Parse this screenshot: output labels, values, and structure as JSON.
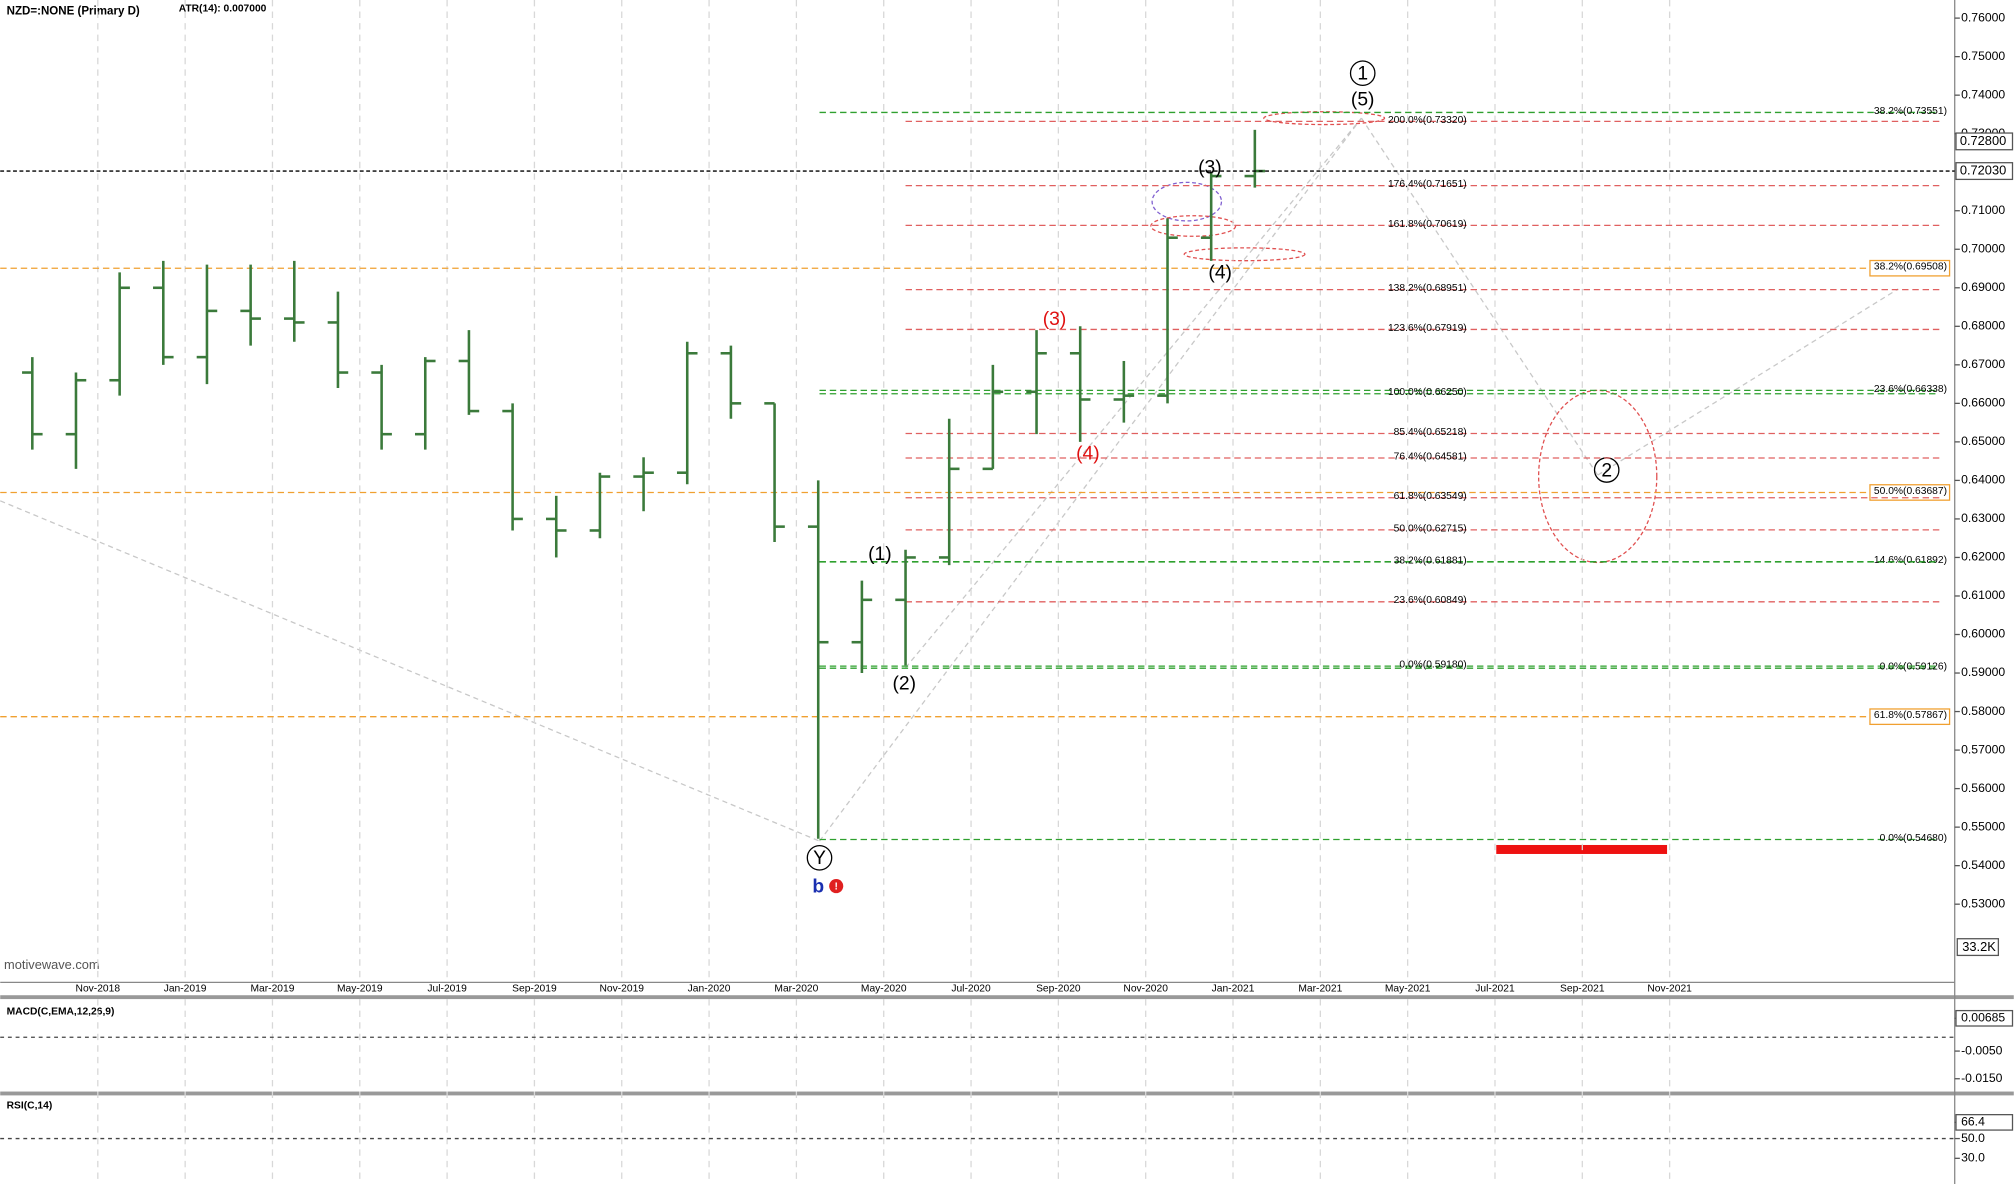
{
  "chart_data": {
    "type": "ohlc",
    "title": "NZD=:NONE (Primary D)",
    "subtitle": "ATR(14): 0.007000",
    "watermark": "motivewave.com",
    "volume_label": "33.2K",
    "color": "#3b7a3b",
    "categories": [
      null,
      null,
      "Nov-2018",
      null,
      "Jan-2019",
      null,
      "Mar-2019",
      null,
      "May-2019",
      null,
      "Jul-2019",
      null,
      "Sep-2019",
      null,
      "Nov-2019",
      null,
      "Jan-2020",
      null,
      "Mar-2020",
      null,
      "May-2020",
      null,
      "Jul-2020",
      null,
      "Sep-2020",
      null,
      "Nov-2020",
      null,
      "Jan-2021",
      null,
      "Mar-2021",
      null,
      "May-2021",
      null,
      "Jul-2021",
      null,
      "Sep-2021",
      null,
      "Nov-2021",
      null
    ],
    "open": [
      0.668,
      0.652,
      0.666,
      0.69,
      0.672,
      0.684,
      0.682,
      0.681,
      0.668,
      0.652,
      0.671,
      0.658,
      0.63,
      0.627,
      0.641,
      0.642,
      0.673,
      0.66,
      0.628,
      0.598,
      0.609,
      0.62,
      0.643,
      0.663,
      0.673,
      0.661,
      0.662,
      0.703,
      0.719,
      null,
      null,
      null,
      null,
      null,
      null,
      null,
      null,
      null,
      null,
      null
    ],
    "high": [
      0.672,
      0.668,
      0.694,
      0.697,
      0.696,
      0.696,
      0.697,
      0.689,
      0.67,
      0.672,
      0.679,
      0.66,
      0.636,
      0.642,
      0.646,
      0.676,
      0.675,
      0.66,
      0.64,
      0.614,
      0.622,
      0.656,
      0.67,
      0.679,
      0.68,
      0.671,
      0.708,
      0.72,
      0.731,
      null,
      null,
      null,
      null,
      null,
      null,
      null,
      null,
      null,
      null,
      null
    ],
    "low": [
      0.648,
      0.643,
      0.662,
      0.67,
      0.665,
      0.675,
      0.676,
      0.664,
      0.648,
      0.648,
      0.657,
      0.627,
      0.62,
      0.625,
      0.632,
      0.639,
      0.656,
      0.624,
      0.547,
      0.59,
      0.592,
      0.618,
      0.643,
      0.652,
      0.65,
      0.655,
      0.66,
      0.697,
      0.716,
      null,
      null,
      null,
      null,
      null,
      null,
      null,
      null,
      null,
      null,
      null
    ],
    "close": [
      0.652,
      0.666,
      0.69,
      0.672,
      0.684,
      0.682,
      0.681,
      0.668,
      0.652,
      0.671,
      0.658,
      0.63,
      0.627,
      0.641,
      0.642,
      0.673,
      0.66,
      0.628,
      0.598,
      0.609,
      0.62,
      0.643,
      0.663,
      0.673,
      0.661,
      0.662,
      0.703,
      0.719,
      0.7203,
      null,
      null,
      null,
      null,
      null,
      null,
      null,
      null,
      null,
      null,
      null
    ],
    "ylim": [
      0.5097,
      0.7647
    ],
    "yticks": [
      {
        "value": 0.76,
        "label": "0.76000"
      },
      {
        "value": 0.75,
        "label": "0.75000"
      },
      {
        "value": 0.74,
        "label": "0.74000"
      },
      {
        "value": 0.73,
        "label": "0.73000"
      },
      {
        "value": 0.71,
        "label": "0.71000"
      },
      {
        "value": 0.7,
        "label": "0.70000"
      },
      {
        "value": 0.69,
        "label": "0.69000"
      },
      {
        "value": 0.68,
        "label": "0.68000"
      },
      {
        "value": 0.67,
        "label": "0.67000"
      },
      {
        "value": 0.66,
        "label": "0.66000"
      },
      {
        "value": 0.65,
        "label": "0.65000"
      },
      {
        "value": 0.64,
        "label": "0.64000"
      },
      {
        "value": 0.63,
        "label": "0.63000"
      },
      {
        "value": 0.62,
        "label": "0.62000"
      },
      {
        "value": 0.61,
        "label": "0.61000"
      },
      {
        "value": 0.6,
        "label": "0.60000"
      },
      {
        "value": 0.59,
        "label": "0.59000"
      },
      {
        "value": 0.58,
        "label": "0.58000"
      },
      {
        "value": 0.57,
        "label": "0.57000"
      },
      {
        "value": 0.56,
        "label": "0.56000"
      },
      {
        "value": 0.55,
        "label": "0.55000"
      },
      {
        "value": 0.54,
        "label": "0.54000"
      },
      {
        "value": 0.53,
        "label": "0.53000"
      }
    ],
    "price_markers": [
      {
        "value": 0.728,
        "label": "0.72800"
      },
      {
        "value": 0.7203,
        "label": "0.72030"
      }
    ],
    "fib_center": [
      {
        "value": 0.7332,
        "label": "200.0%(0.73320)",
        "color": "#e06060"
      },
      {
        "value": 0.71651,
        "label": "176.4%(0.71651)",
        "color": "#e06060"
      },
      {
        "value": 0.70619,
        "label": "161.8%(0.70619)",
        "color": "#e06060"
      },
      {
        "value": 0.68951,
        "label": "138.2%(0.68951)",
        "color": "#e06060"
      },
      {
        "value": 0.67919,
        "label": "123.6%(0.67919)",
        "color": "#e06060"
      },
      {
        "value": 0.6625,
        "label": "100.0%(0.66250)",
        "color": "#2fa02f"
      },
      {
        "value": 0.65218,
        "label": "85.4%(0.65218)",
        "color": "#e06060"
      },
      {
        "value": 0.64581,
        "label": "76.4%(0.64581)",
        "color": "#e06060"
      },
      {
        "value": 0.63549,
        "label": "61.8%(0.63549)",
        "color": "#e06060"
      },
      {
        "value": 0.62715,
        "label": "50.0%(0.62715)",
        "color": "#e06060"
      },
      {
        "value": 0.61881,
        "label": "38.2%(0.61881)",
        "color": "#2fa02f"
      },
      {
        "value": 0.60849,
        "label": "23.6%(0.60849)",
        "color": "#e06060"
      },
      {
        "value": 0.5918,
        "label": "0.0%(0.59180)",
        "color": "#2fa02f"
      }
    ],
    "fib_right": [
      {
        "value": 0.73551,
        "label": "38.2%(0.73551)",
        "color": "#2fa02f"
      },
      {
        "value": 0.66338,
        "label": "23.6%(0.66338)",
        "color": "#2fa02f"
      },
      {
        "value": 0.61892,
        "label": "14.6%(0.61892)",
        "color": "#2fa02f"
      },
      {
        "value": 0.59126,
        "label": "0.0%(0.59126)",
        "color": "#2fa02f"
      },
      {
        "value": 0.5468,
        "label": "0.0%(0.54680)",
        "color": "#2fa02f"
      }
    ],
    "fib_orange": [
      {
        "value": 0.69508,
        "label": "38.2%(0.69508)",
        "color": "#f0a030"
      },
      {
        "value": 0.63687,
        "label": "50.0%(0.63687)",
        "color": "#f0a030"
      },
      {
        "value": 0.57867,
        "label": "61.8%(0.57867)",
        "color": "#f0a030"
      }
    ],
    "waves": [
      {
        "text": "1",
        "color": "#000"
      },
      {
        "text": "(5)",
        "color": "#000"
      },
      {
        "text": "(3)",
        "color": "#000"
      },
      {
        "text": "(4)",
        "color": "#000"
      },
      {
        "text": "(3)",
        "color": "#e01010"
      },
      {
        "text": "(4)",
        "color": "#e01010"
      },
      {
        "text": "(1)",
        "color": "#000"
      },
      {
        "text": "(2)",
        "color": "#000"
      },
      {
        "text": "Y",
        "color": "#000"
      },
      {
        "text": "b",
        "color": "#1a2fb0"
      },
      {
        "text": "2",
        "color": "#000"
      }
    ],
    "macd": {
      "title": "MACD(C,EMA,12,26,9)",
      "ylim": [
        -0.0187,
        0.0138
      ],
      "yticks": [
        {
          "value": 0.00685,
          "label": "0.00685"
        },
        {
          "value": -0.005,
          "label": "-0.0050"
        },
        {
          "value": -0.015,
          "label": "-0.0150"
        }
      ],
      "reference_lines": [
        0
      ]
    },
    "rsi": {
      "title": "RSI(C,14)",
      "ylim": [
        13.1,
        93.7
      ],
      "yticks": [
        66.4,
        {
          "value": 50,
          "label": "50.0"
        },
        {
          "value": 30,
          "label": "30.0"
        }
      ],
      "reference_lines": [
        50
      ]
    }
  }
}
